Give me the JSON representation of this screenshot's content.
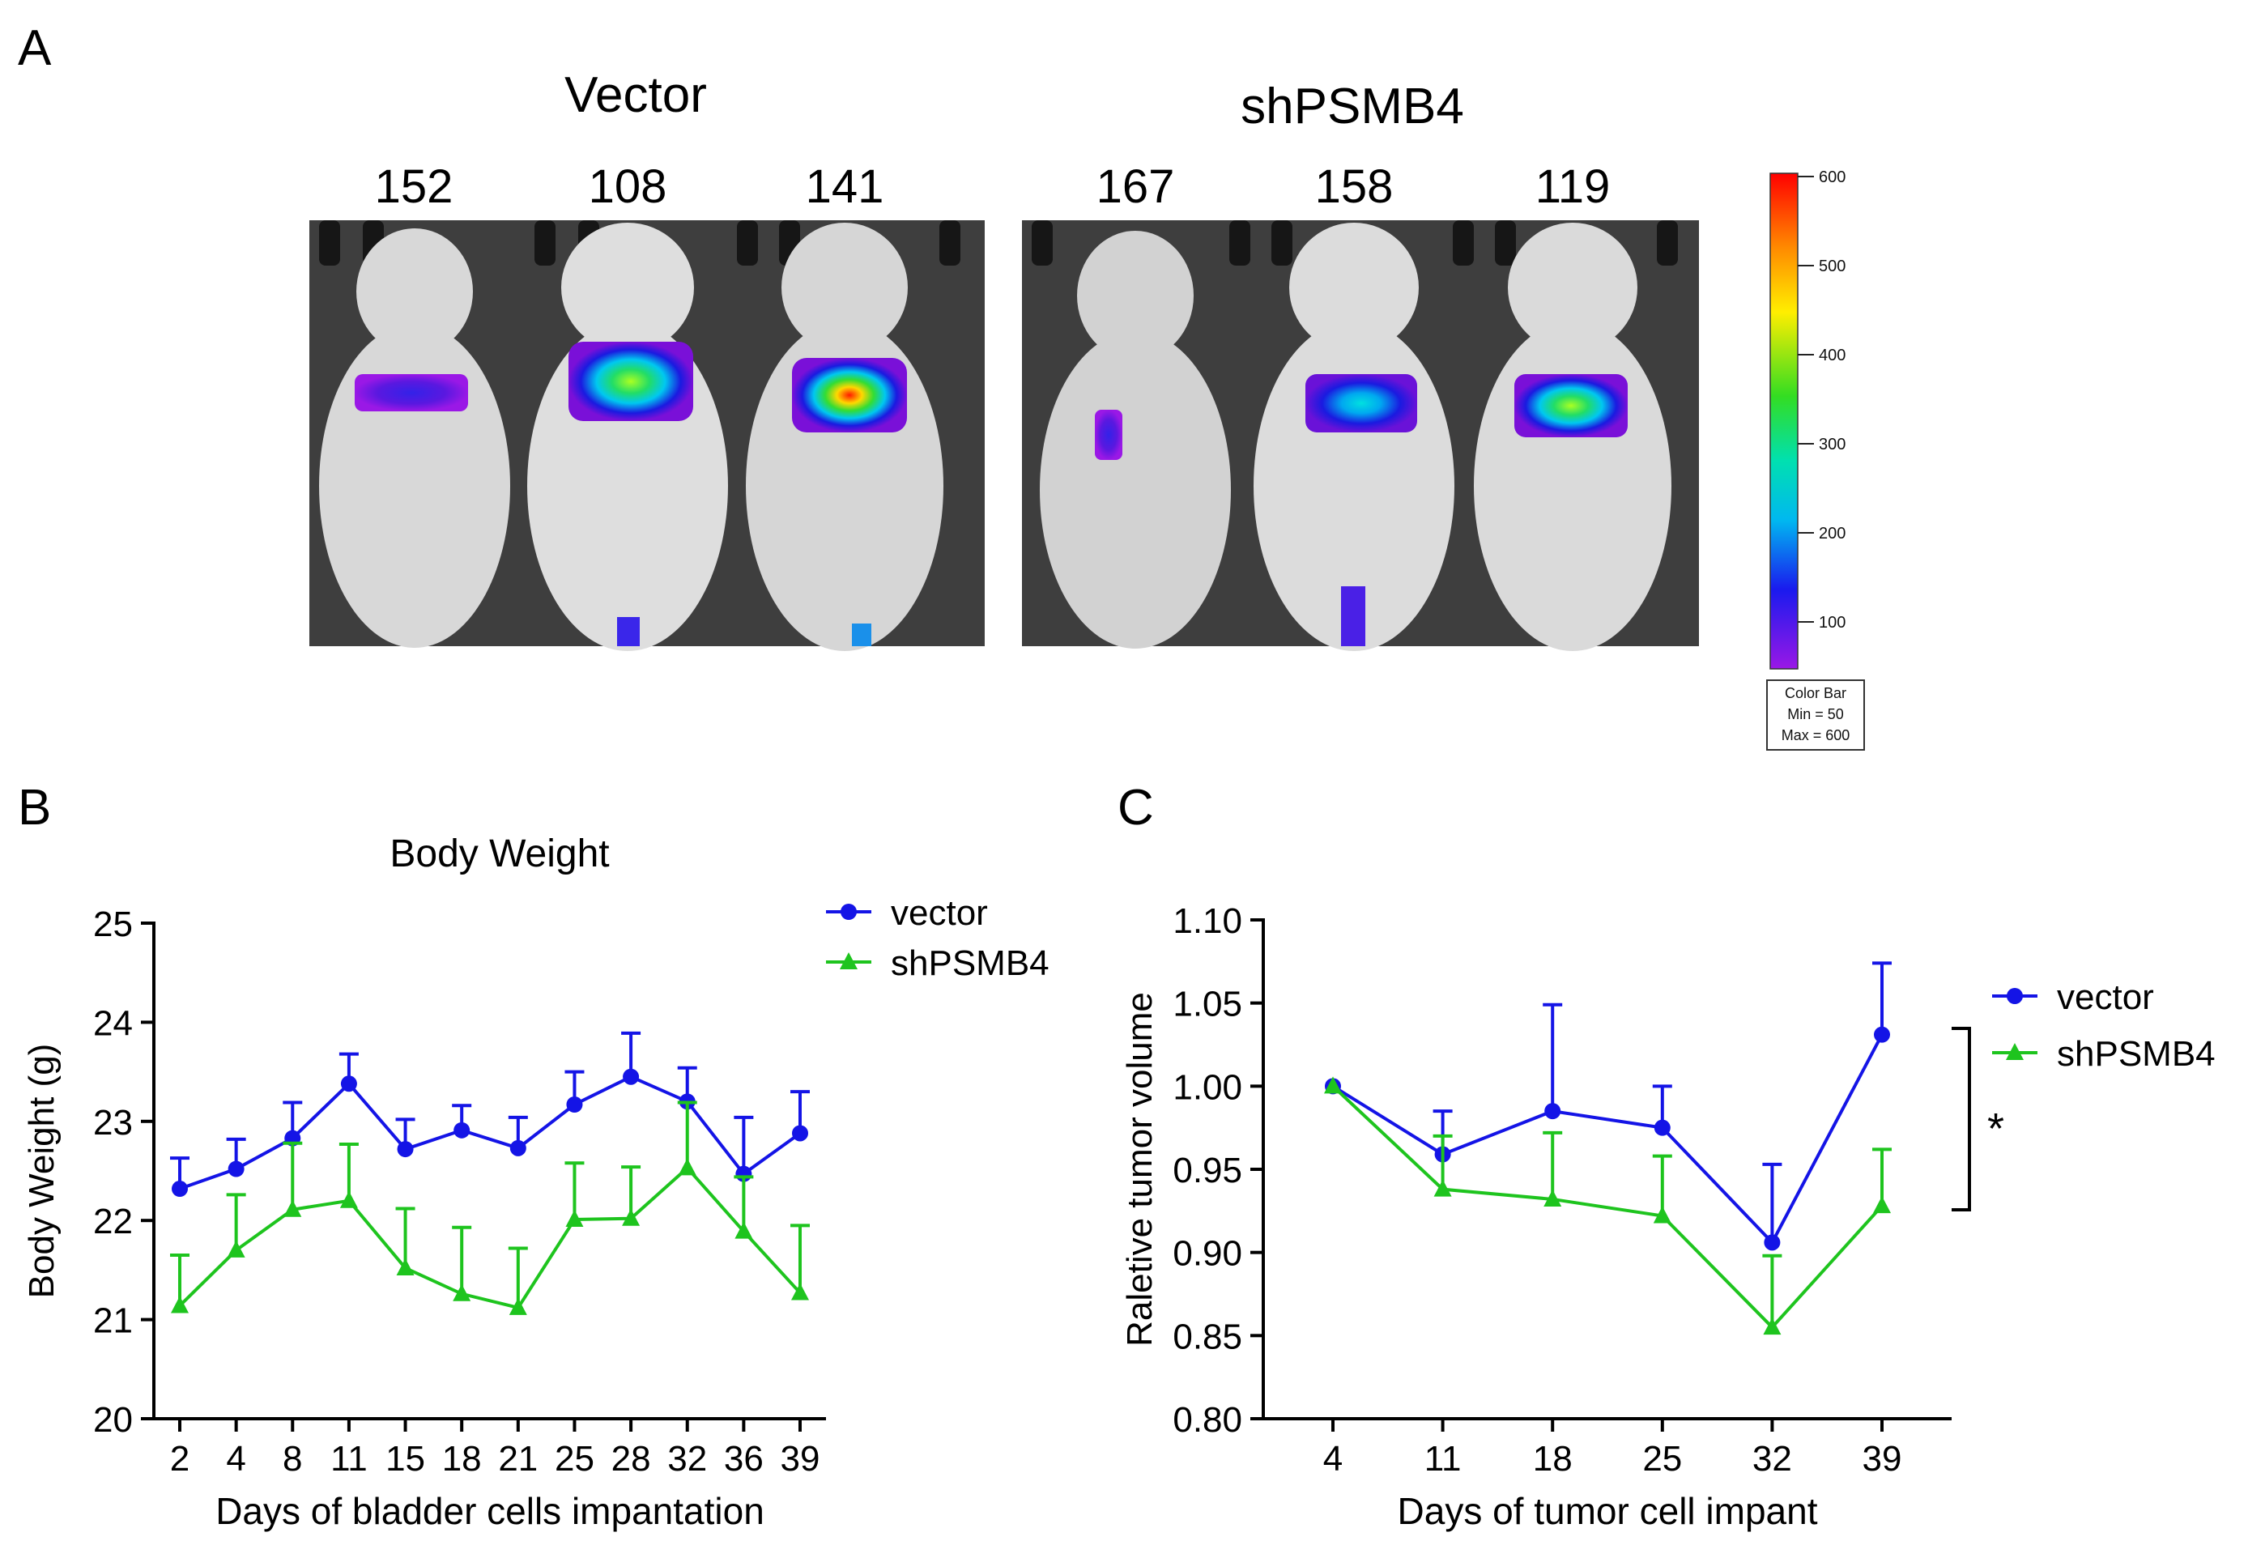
{
  "panels": {
    "a": {
      "letter": "A",
      "groups": [
        {
          "name": "Vector",
          "mice": [
            "152",
            "108",
            "141"
          ]
        },
        {
          "name": "shPSMB4",
          "mice": [
            "167",
            "158",
            "119"
          ]
        }
      ],
      "color_bar": {
        "ticks": [
          "600",
          "500",
          "400",
          "300",
          "200",
          "100"
        ],
        "caption": [
          "Color Bar",
          "Min = 50",
          "Max = 600"
        ],
        "min": 50,
        "max": 600
      }
    },
    "b": {
      "letter": "B"
    },
    "c": {
      "letter": "C"
    }
  },
  "colors": {
    "vector": "#1414e6",
    "shPSMB4": "#1ec41e",
    "axis": "#000000"
  },
  "chart_data": [
    {
      "type": "line",
      "id": "B",
      "title": "Body Weight",
      "xlabel": "Days of bladder cells impantation",
      "ylabel": "Body Weight (g)",
      "categories": [
        "2",
        "4",
        "8",
        "11",
        "15",
        "18",
        "21",
        "25",
        "28",
        "32",
        "36",
        "39"
      ],
      "ylim": [
        20,
        25
      ],
      "yticks": [
        "20",
        "21",
        "22",
        "23",
        "24",
        "25"
      ],
      "legend": "top-right",
      "series": [
        {
          "name": "vector",
          "marker": "circle",
          "values": [
            22.32,
            22.52,
            22.83,
            23.38,
            22.72,
            22.91,
            22.73,
            23.17,
            23.45,
            23.2,
            22.47,
            22.88
          ],
          "errors": [
            0.31,
            0.3,
            0.36,
            0.3,
            0.3,
            0.25,
            0.31,
            0.33,
            0.44,
            0.34,
            0.57,
            0.42
          ]
        },
        {
          "name": "shPSMB4",
          "marker": "triangle",
          "values": [
            21.14,
            21.7,
            22.11,
            22.2,
            21.52,
            21.26,
            21.12,
            22.01,
            22.02,
            22.53,
            21.89,
            21.27
          ],
          "errors": [
            0.51,
            0.56,
            0.67,
            0.57,
            0.6,
            0.67,
            0.6,
            0.57,
            0.52,
            0.66,
            0.55,
            0.68
          ]
        }
      ]
    },
    {
      "type": "line",
      "id": "C",
      "title": "",
      "xlabel": "Days of tumor cell impant",
      "ylabel": "Raletive tumor volume",
      "categories": [
        "4",
        "11",
        "18",
        "25",
        "32",
        "39"
      ],
      "ylim": [
        0.8,
        1.1
      ],
      "yticks": [
        "0.80",
        "0.85",
        "0.90",
        "0.95",
        "1.00",
        "1.05",
        "1.10"
      ],
      "legend": "right",
      "significance": "*",
      "series": [
        {
          "name": "vector",
          "marker": "circle",
          "values": [
            1.0,
            0.959,
            0.985,
            0.975,
            0.906,
            1.031
          ],
          "errors": [
            0,
            0.026,
            0.064,
            0.025,
            0.047,
            0.043
          ]
        },
        {
          "name": "shPSMB4",
          "marker": "triangle",
          "values": [
            1.0,
            0.938,
            0.932,
            0.922,
            0.855,
            0.928
          ],
          "errors": [
            0,
            0.032,
            0.04,
            0.036,
            0.043,
            0.034
          ]
        }
      ]
    }
  ]
}
